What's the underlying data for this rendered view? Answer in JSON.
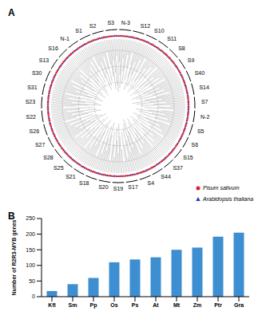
{
  "panel_labels": [
    "A",
    "B"
  ],
  "tree": {
    "clades": [
      "N-3",
      "S12",
      "S10",
      "S11",
      "S8",
      "S9",
      "S40",
      "S14",
      "S7",
      "N-2",
      "S5",
      "S6",
      "S15",
      "S37",
      "S44",
      "S4",
      "S17",
      "S19",
      "S20",
      "S18",
      "S21",
      "S25",
      "S28",
      "S27",
      "S26",
      "S22",
      "S23",
      "S31",
      "S30",
      "S13",
      "S16",
      "N-1",
      "S1",
      "S2",
      "S3"
    ],
    "legend": [
      {
        "name": "Pisum sativum",
        "color": "#e0202a",
        "marker": "circle"
      },
      {
        "name": "Arabidopsis thaliana",
        "color": "#1f3fbf",
        "marker": "triangle"
      }
    ]
  },
  "chart_data": {
    "type": "bar",
    "ylabel": "Number of R2R3-MYB genes",
    "categories": [
      "Kfl",
      "Sm",
      "Pp",
      "Os",
      "Ps",
      "At",
      "Mt",
      "Zm",
      "Ptr",
      "Gra"
    ],
    "values": [
      18,
      40,
      60,
      110,
      119,
      126,
      150,
      157,
      192,
      205
    ],
    "color": "#3d8fd1",
    "ylim": [
      0,
      250
    ],
    "yticks": [
      0,
      50,
      100,
      150,
      200,
      250
    ],
    "grid": false
  }
}
